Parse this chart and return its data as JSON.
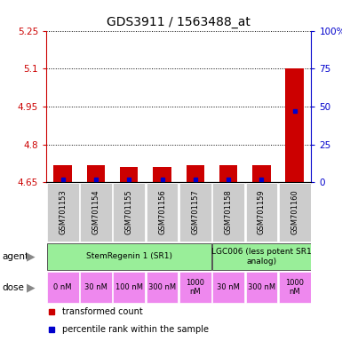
{
  "title": "GDS3911 / 1563488_at",
  "samples": [
    "GSM701153",
    "GSM701154",
    "GSM701155",
    "GSM701156",
    "GSM701157",
    "GSM701158",
    "GSM701159",
    "GSM701160"
  ],
  "bar_values": [
    4.72,
    4.72,
    4.71,
    4.71,
    4.72,
    4.72,
    4.72,
    5.1
  ],
  "percentile_values": [
    2,
    2,
    2,
    2,
    2,
    2,
    2,
    47
  ],
  "ylim_left": [
    4.65,
    5.25
  ],
  "ylim_right": [
    0,
    100
  ],
  "yticks_left": [
    4.65,
    4.8,
    4.95,
    5.1,
    5.25
  ],
  "yticks_right": [
    0,
    25,
    50,
    75,
    100
  ],
  "ytick_labels_left": [
    "4.65",
    "4.8",
    "4.95",
    "5.1",
    "5.25"
  ],
  "ytick_labels_right": [
    "0",
    "25",
    "50",
    "75",
    "100%"
  ],
  "bar_color": "#cc0000",
  "percentile_color": "#0000cc",
  "plot_bg_color": "#ffffff",
  "agent_row": [
    {
      "label": "StemRegenin 1 (SR1)",
      "start": 0,
      "end": 5,
      "color": "#99ee99"
    },
    {
      "label": "LGC006 (less potent SR1\nanalog)",
      "start": 5,
      "end": 8,
      "color": "#99ee99"
    }
  ],
  "dose_row": [
    {
      "label": "0 nM",
      "start": 0,
      "end": 1
    },
    {
      "label": "30 nM",
      "start": 1,
      "end": 2
    },
    {
      "label": "100 nM",
      "start": 2,
      "end": 3
    },
    {
      "label": "300 nM",
      "start": 3,
      "end": 4
    },
    {
      "label": "1000\nnM",
      "start": 4,
      "end": 5
    },
    {
      "label": "30 nM",
      "start": 5,
      "end": 6
    },
    {
      "label": "300 nM",
      "start": 6,
      "end": 7
    },
    {
      "label": "1000\nnM",
      "start": 7,
      "end": 8
    }
  ],
  "dose_color": "#ee88ee",
  "sample_box_color": "#cccccc",
  "left_axis_color": "#cc0000",
  "right_axis_color": "#0000cc",
  "base_value": 4.65,
  "legend_items": [
    {
      "color": "#cc0000",
      "label": "transformed count"
    },
    {
      "color": "#0000cc",
      "label": "percentile rank within the sample"
    }
  ]
}
